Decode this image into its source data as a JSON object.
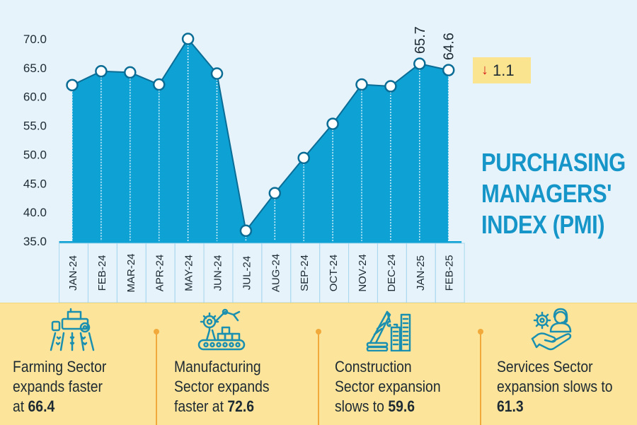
{
  "chart_data": {
    "type": "area",
    "title": "PURCHASING MANAGERS' INDEX (PMI)",
    "title_lines": [
      "PURCHASING",
      "MANAGERS'",
      "INDEX (PMI)"
    ],
    "categories": [
      "JAN-24",
      "FEB-24",
      "MAR-24",
      "APR-24",
      "MAY-24",
      "JUN-24",
      "JUL-24",
      "AUG-24",
      "SEP-24",
      "OCT-24",
      "NOV-24",
      "DEC-24",
      "JAN-25",
      "FEB-25"
    ],
    "series": [
      {
        "name": "PMI",
        "values": [
          62.0,
          64.4,
          64.2,
          62.1,
          70.0,
          64.0,
          36.8,
          43.3,
          49.4,
          55.3,
          62.1,
          61.8,
          65.7,
          64.6
        ]
      }
    ],
    "data_labels": [
      {
        "category": "JAN-25",
        "text": "65.7"
      },
      {
        "category": "FEB-25",
        "text": "64.6"
      }
    ],
    "yticks": [
      "70.0",
      "65.0",
      "60.0",
      "55.0",
      "50.0",
      "45.0",
      "40.0",
      "35.0"
    ],
    "ylim": [
      35,
      70
    ],
    "xlabel": "",
    "ylabel": "",
    "grid": false,
    "colors": {
      "fill": "#0ea2d4",
      "line": "#0b6d96",
      "marker_fill": "#ffffff",
      "marker_stroke": "#0b6d96"
    }
  },
  "change": {
    "direction": "down",
    "arrow": "↓",
    "value": "1.1"
  },
  "sectors": [
    {
      "icon": "tractor-field-icon",
      "line1": "Farming Sector",
      "line2": "expands faster",
      "line3_prefix": "at ",
      "value": "66.4"
    },
    {
      "icon": "robot-arm-conveyor-icon",
      "line1": "Manufacturing",
      "line2": "Sector expands",
      "line3_prefix": "faster at ",
      "value": "72.6"
    },
    {
      "icon": "crane-building-icon",
      "line1": "Construction",
      "line2": "Sector expansion",
      "line3_prefix": "slows to ",
      "value": "59.6"
    },
    {
      "icon": "service-hand-icon",
      "line1": "Services Sector",
      "line2": "expansion slows to",
      "line3_prefix": "",
      "value": "61.3"
    }
  ]
}
